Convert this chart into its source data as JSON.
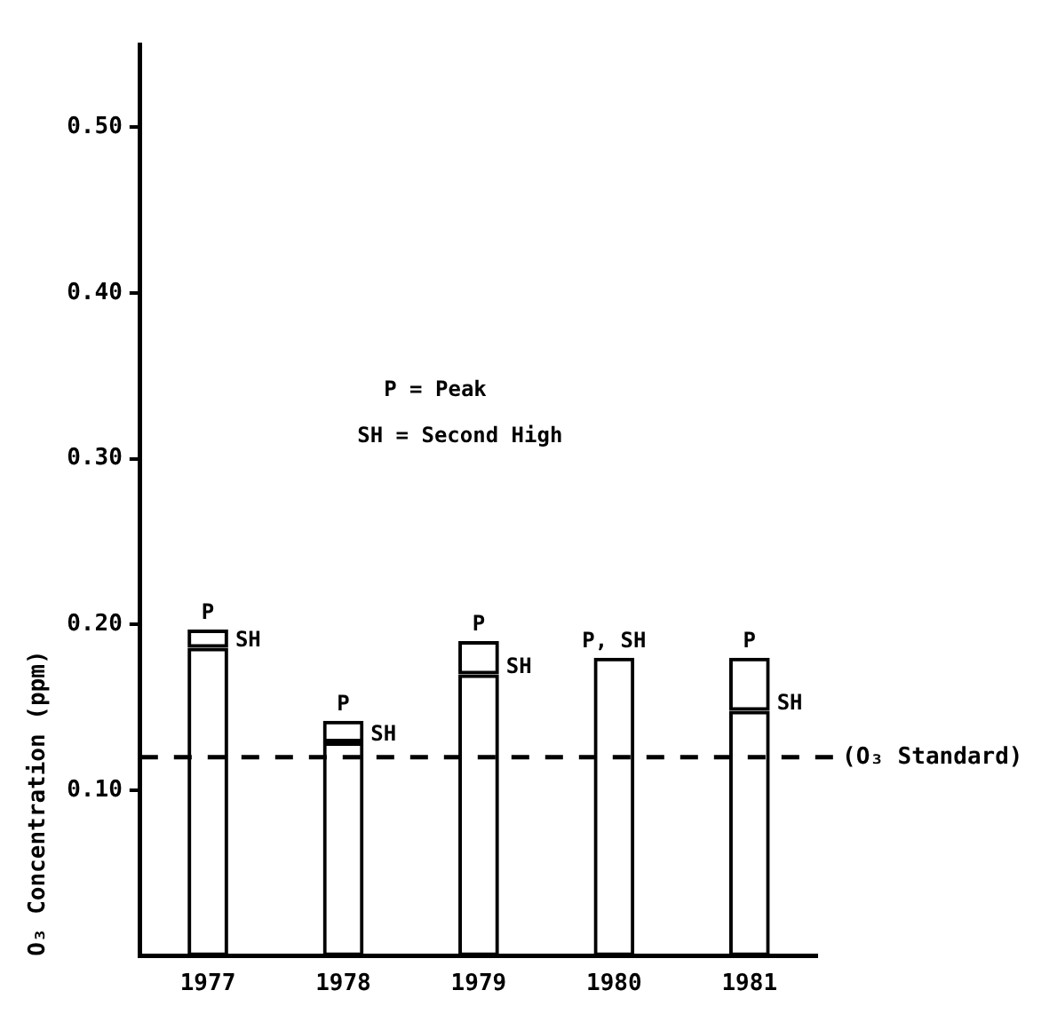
{
  "chart_data": {
    "type": "bar",
    "stacked": true,
    "ylabel": "O₃ Concentration (ppm)",
    "categories": [
      "1977",
      "1978",
      "1979",
      "1980",
      "1981"
    ],
    "series": [
      {
        "color": "#000000",
        "values": [
          0.186,
          0.129,
          0.17,
          0.18,
          0.148
        ]
      },
      {
        "color": "#000000",
        "values": [
          0.011,
          0.013,
          0.02,
          0,
          0.032
        ]
      }
    ],
    "ylim": [
      0,
      0.55
    ],
    "yticks": [
      {
        "value": 0.1,
        "label": "0.10"
      },
      {
        "value": 0.2,
        "label": "0.20"
      },
      {
        "value": 0.3,
        "label": "0.30"
      },
      {
        "value": 0.4,
        "label": "0.40"
      },
      {
        "value": 0.5,
        "label": "0.50"
      }
    ],
    "grid": false,
    "legend": false,
    "ref_lines": [
      {
        "axis": "y",
        "value": 0.12,
        "label": "(O₃ Standard)",
        "line_style": "dashed",
        "color": "#000000"
      }
    ],
    "annotations": [
      "P = Peak",
      "SH = Second High",
      {
        "text": "P",
        "x": "1977",
        "y": 0.197
      },
      {
        "text": "SH",
        "x": "1977",
        "y": 0.186
      },
      {
        "text": "P",
        "x": "1978",
        "y": 0.142
      },
      {
        "text": "SH",
        "x": "1978",
        "y": 0.129
      },
      {
        "text": "P",
        "x": "1979",
        "y": 0.19
      },
      {
        "text": "SH",
        "x": "1979",
        "y": 0.17
      },
      {
        "text": "P, SH",
        "x": "1980",
        "y": 0.18
      },
      {
        "text": "P",
        "x": "1981",
        "y": 0.18
      },
      {
        "text": "SH",
        "x": "1981",
        "y": 0.148
      }
    ]
  }
}
